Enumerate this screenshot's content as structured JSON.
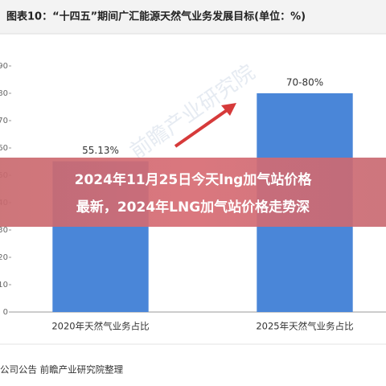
{
  "chart_data": {
    "type": "bar",
    "title": "图表10：“十四五”期间广汇能源天然气业务发展目标(单位：%)",
    "categories": [
      "2020年天然气业务占比",
      "2025年天然气业务占比"
    ],
    "values": [
      55.13,
      80
    ],
    "value_labels": [
      "55.13%",
      "70-80%"
    ],
    "color": "#4a86d8",
    "ylim": [
      0,
      90
    ],
    "yticks": [
      0,
      10,
      20,
      30,
      40,
      50,
      60,
      70,
      80,
      90
    ],
    "grid": false
  },
  "headline": [
    "2024年11月25日今天lng加气站价格",
    "最新，2024年LNG加气站价格走势深"
  ],
  "source": "公司公告 前瞻产业研究院整理"
}
